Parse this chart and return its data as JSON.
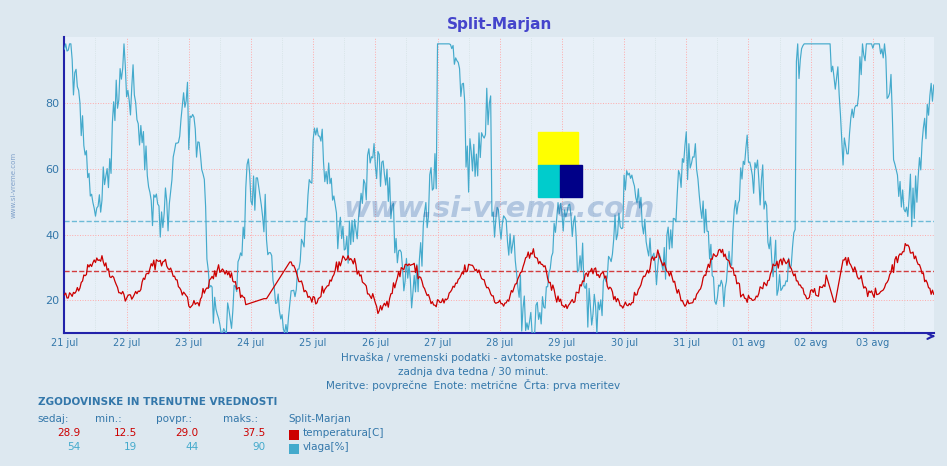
{
  "title": "Split-Marjan",
  "title_color": "#4444cc",
  "bg_color": "#dde8f0",
  "plot_bg_color": "#e8f0f8",
  "axis_color": "#2222aa",
  "tick_color": "#3377aa",
  "temp_color": "#cc0000",
  "vlaga_color": "#44aacc",
  "temp_avg": 29.0,
  "vlaga_avg": 44.0,
  "temp_min": 12.5,
  "temp_max": 37.5,
  "temp_current": 28.9,
  "vlaga_min": 19,
  "vlaga_max": 90,
  "vlaga_current": 54,
  "ylim": [
    10,
    100
  ],
  "yticks": [
    20,
    40,
    60,
    80
  ],
  "watermark": "www.si-vreme.com",
  "subtitle1": "Hrvaška / vremenski podatki - avtomatske postaje.",
  "subtitle2": "zadnja dva tedna / 30 minut.",
  "subtitle3": "Meritve: povprečne  Enote: metrične  Črta: prva meritev",
  "bottom_title": "ZGODOVINSKE IN TRENUTNE VREDNOSTI",
  "col_sedaj": "sedaj:",
  "col_min": "min.:",
  "col_povpr": "povpr.:",
  "col_maks": "maks.:",
  "col_station": "Split-Marjan",
  "x_labels": [
    "21 jul",
    "22 jul",
    "23 jul",
    "24 jul",
    "25 jul",
    "26 jul",
    "27 jul",
    "28 jul",
    "29 jul",
    "30 jul",
    "31 jul",
    "01 avg",
    "02 avg",
    "03 avg"
  ],
  "n_points": 672,
  "figsize": [
    9.47,
    4.66
  ],
  "dpi": 100
}
